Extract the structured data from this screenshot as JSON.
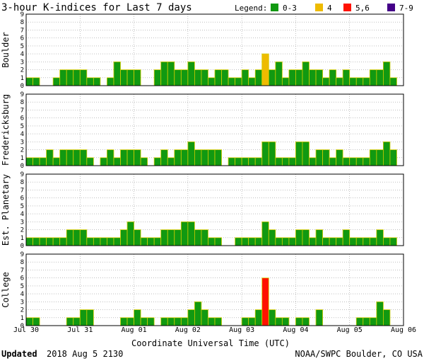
{
  "title": "3-hour K-indices for Last 7 days",
  "legend": {
    "label": "Legend:",
    "items": [
      {
        "label": "0-3",
        "color": "#119911"
      },
      {
        "label": "4",
        "color": "#eebb00"
      },
      {
        "label": "5,6",
        "color": "#ff1100"
      },
      {
        "label": "7-9",
        "color": "#440088"
      }
    ]
  },
  "x_axis": {
    "title": "Coordinate Universal Time (UTC)",
    "tick_labels": [
      "Jul 30",
      "Jul 31",
      "Aug 01",
      "Aug 02",
      "Aug 03",
      "Aug 04",
      "Aug 05",
      "Aug 06"
    ]
  },
  "footer": {
    "updated_label": "Updated",
    "updated_value": "2018 Aug  5 2130",
    "credit": "NOAA/SWPC Boulder, CO USA"
  },
  "colors": {
    "bar_outline": "#d4cc00",
    "grid": "#999999"
  },
  "chart_data": [
    {
      "type": "bar",
      "station": "Boulder",
      "ylim": [
        0,
        9
      ],
      "y_ticks": [
        0,
        1,
        2,
        3,
        4,
        5,
        6,
        7,
        8,
        9
      ],
      "x_range": [
        "Jul 30",
        "Aug 06"
      ],
      "interval_hours": 3,
      "grid": true,
      "values": [
        1,
        1,
        0,
        0,
        1,
        2,
        2,
        2,
        2,
        1,
        1,
        0,
        1,
        3,
        2,
        2,
        2,
        0,
        0,
        2,
        3,
        3,
        2,
        2,
        3,
        2,
        2,
        1,
        2,
        2,
        1,
        1,
        2,
        1,
        2,
        4,
        2,
        3,
        1,
        2,
        2,
        3,
        2,
        2,
        1,
        2,
        1,
        2,
        1,
        1,
        1,
        2,
        2,
        3,
        1,
        0
      ]
    },
    {
      "type": "bar",
      "station": "Fredericksburg",
      "ylim": [
        0,
        9
      ],
      "y_ticks": [
        0,
        1,
        2,
        3,
        4,
        5,
        6,
        7,
        8,
        9
      ],
      "x_range": [
        "Jul 30",
        "Aug 06"
      ],
      "interval_hours": 3,
      "grid": true,
      "values": [
        1,
        1,
        1,
        2,
        1,
        2,
        2,
        2,
        2,
        1,
        0,
        1,
        2,
        1,
        2,
        2,
        2,
        1,
        0,
        1,
        2,
        1,
        2,
        2,
        3,
        2,
        2,
        2,
        2,
        0,
        1,
        1,
        1,
        1,
        1,
        3,
        3,
        1,
        1,
        1,
        3,
        3,
        1,
        2,
        2,
        1,
        2,
        1,
        1,
        1,
        1,
        2,
        2,
        3,
        2,
        0
      ]
    },
    {
      "type": "bar",
      "station": "Est. Planetary",
      "ylim": [
        0,
        9
      ],
      "y_ticks": [
        0,
        1,
        2,
        3,
        4,
        5,
        6,
        7,
        8,
        9
      ],
      "x_range": [
        "Jul 30",
        "Aug 06"
      ],
      "interval_hours": 3,
      "grid": true,
      "values": [
        1,
        1,
        1,
        1,
        1,
        1,
        2,
        2,
        2,
        1,
        1,
        1,
        1,
        1,
        2,
        3,
        2,
        1,
        1,
        1,
        2,
        2,
        2,
        3,
        3,
        2,
        2,
        1,
        1,
        0,
        0,
        1,
        1,
        1,
        1,
        3,
        2,
        1,
        1,
        1,
        2,
        2,
        1,
        2,
        1,
        1,
        1,
        2,
        1,
        1,
        1,
        1,
        2,
        1,
        1,
        0
      ]
    },
    {
      "type": "bar",
      "station": "College",
      "ylim": [
        0,
        9
      ],
      "y_ticks": [
        0,
        1,
        2,
        3,
        4,
        5,
        6,
        7,
        8,
        9
      ],
      "x_range": [
        "Jul 30",
        "Aug 06"
      ],
      "interval_hours": 3,
      "grid": true,
      "values": [
        1,
        1,
        0,
        0,
        0,
        0,
        1,
        1,
        2,
        2,
        0,
        0,
        0,
        0,
        1,
        1,
        2,
        1,
        1,
        0,
        1,
        1,
        1,
        1,
        2,
        3,
        2,
        1,
        1,
        0,
        0,
        0,
        1,
        1,
        2,
        6,
        2,
        1,
        1,
        0,
        1,
        1,
        0,
        2,
        0,
        0,
        0,
        0,
        0,
        1,
        1,
        1,
        3,
        2,
        0,
        0
      ]
    }
  ]
}
